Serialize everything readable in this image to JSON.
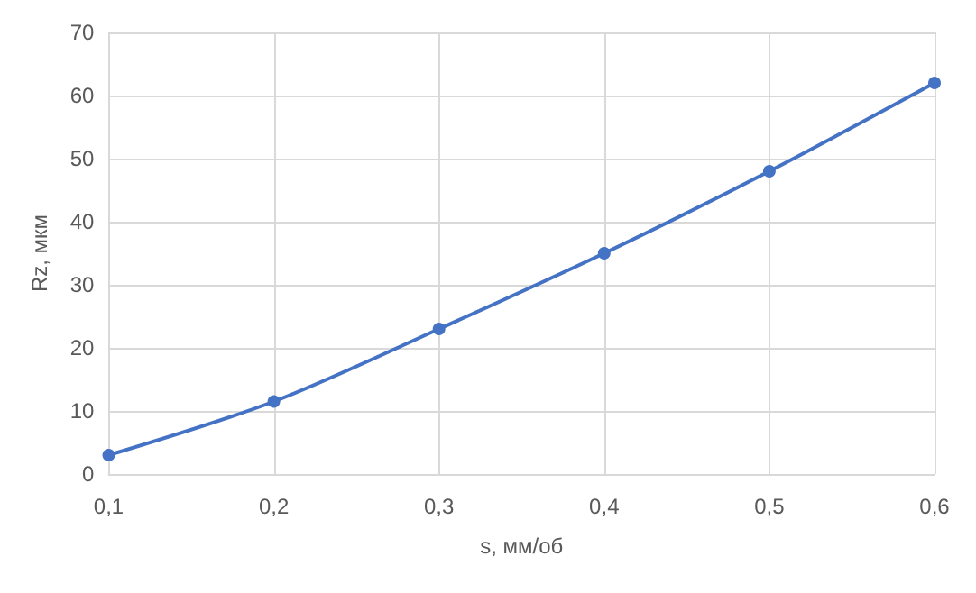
{
  "chart_data": {
    "type": "line",
    "xlabel": "s, мм/об",
    "ylabel": "Rz, мкм",
    "x": [
      0.1,
      0.2,
      0.3,
      0.4,
      0.5,
      0.6
    ],
    "series": [
      {
        "color": "#4472c4",
        "values": [
          3,
          11.5,
          23,
          35,
          48,
          62
        ]
      }
    ],
    "xlim": [
      0.1,
      0.6
    ],
    "xticks": [
      {
        "value": 0.1,
        "label": "0,1"
      },
      {
        "value": 0.2,
        "label": "0,2"
      },
      {
        "value": 0.3,
        "label": "0,3"
      },
      {
        "value": 0.4,
        "label": "0,4"
      },
      {
        "value": 0.5,
        "label": "0,5"
      },
      {
        "value": 0.6,
        "label": "0,6"
      }
    ],
    "ylim": [
      0,
      70
    ],
    "yticks": [
      0,
      10,
      20,
      30,
      40,
      50,
      60,
      70
    ],
    "grid": true,
    "marker": "circle",
    "line_style": "solid"
  }
}
